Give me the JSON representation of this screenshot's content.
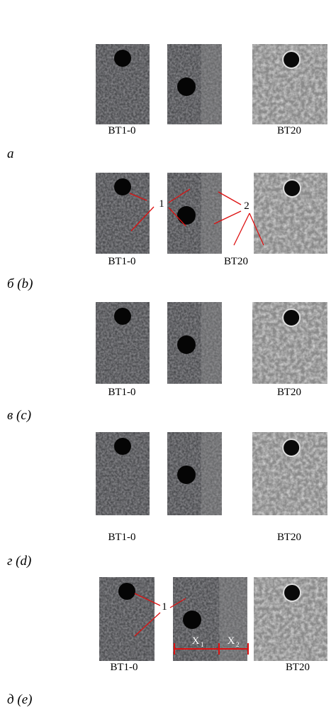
{
  "panels": [
    {
      "label": "а",
      "samples": [
        "ВТ1-0",
        "ВТ20"
      ]
    },
    {
      "label": "б (b)",
      "samples": [
        "ВТ1-0",
        "ВТ20"
      ],
      "annotations": [
        {
          "text": "1"
        },
        {
          "text": "2"
        }
      ]
    },
    {
      "label": "в (c)",
      "samples": [
        "ВТ1-0",
        "ВТ20"
      ]
    },
    {
      "label": "г (d)",
      "samples": [
        "ВТ1-0",
        "ВТ20"
      ]
    },
    {
      "label": "д (e)",
      "samples": [
        "ВТ1-0",
        "ВТ20"
      ],
      "annotations": [
        {
          "text": "1"
        },
        {
          "text": "X",
          "sub": "1"
        },
        {
          "text": "X",
          "sub": "2"
        }
      ]
    }
  ]
}
